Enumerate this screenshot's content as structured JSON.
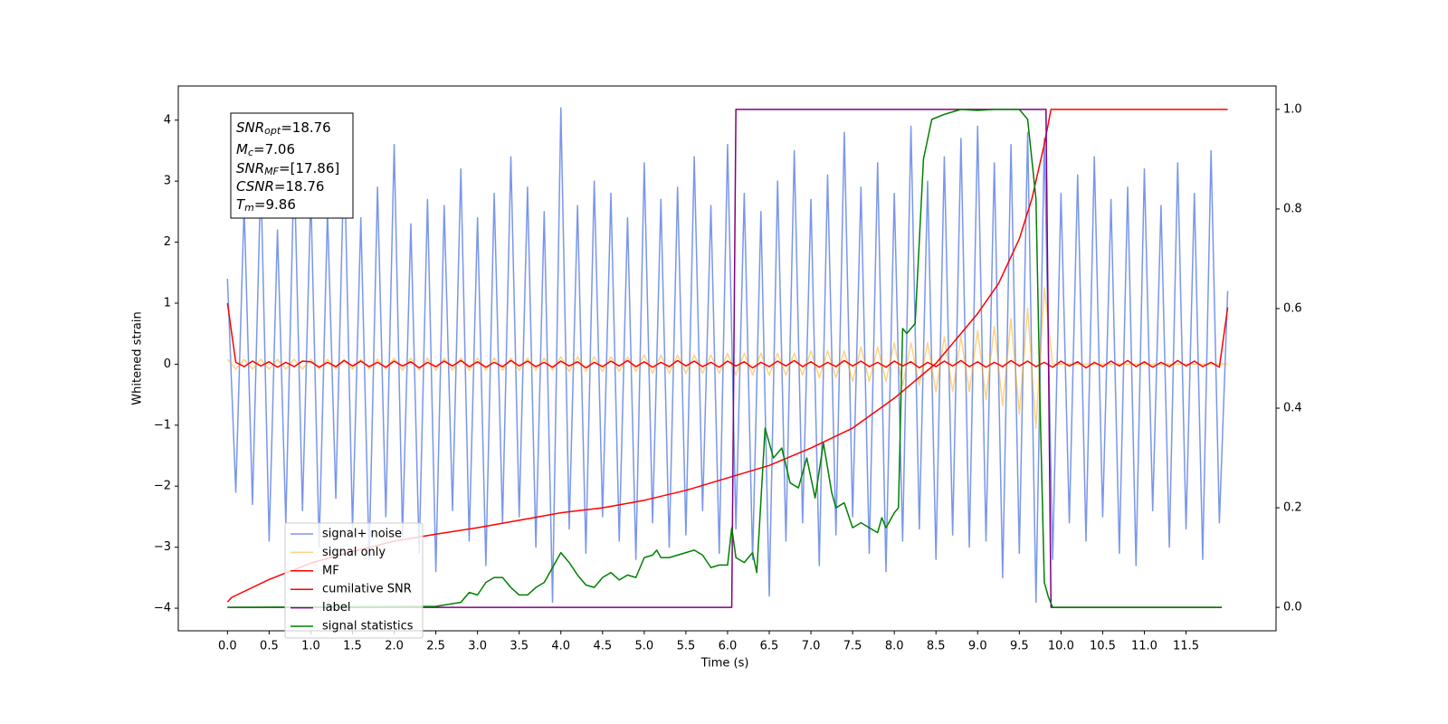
{
  "chart_data": {
    "type": "line",
    "xlabel": "Time (s)",
    "ylabel": "Whitened strain",
    "xlim": [
      -0.59,
      12.58
    ],
    "ylim": [
      -4.37,
      4.56
    ],
    "y2lim": [
      -0.047,
      1.047
    ],
    "xticks": [
      {
        "value": 0,
        "label": "0.0"
      },
      0.5,
      {
        "value": 1,
        "label": "1.0"
      },
      1.5,
      {
        "value": 2,
        "label": "2.0"
      },
      2.5,
      {
        "value": 3,
        "label": "3.0"
      },
      3.5,
      {
        "value": 4,
        "label": "4.0"
      },
      4.5,
      {
        "value": 5,
        "label": "5.0"
      },
      5.5,
      {
        "value": 6,
        "label": "6.0"
      },
      6.5,
      {
        "value": 7,
        "label": "7.0"
      },
      7.5,
      {
        "value": 8,
        "label": "8.0"
      },
      8.5,
      {
        "value": 9,
        "label": "9.0"
      },
      9.5,
      {
        "value": 10,
        "label": "10.0"
      },
      10.5,
      {
        "value": 11,
        "label": "11.0"
      },
      11.5
    ],
    "yticks": [
      {
        "value": -4,
        "label": "−4"
      },
      {
        "value": -3,
        "label": "−3"
      },
      {
        "value": -2,
        "label": "−2"
      },
      {
        "value": -1,
        "label": "−1"
      },
      0,
      1,
      2,
      3,
      4
    ],
    "y2ticks": [
      {
        "value": 0,
        "label": "0.0"
      },
      0.2,
      0.4,
      0.6,
      0.8,
      {
        "value": 1,
        "label": "1.0"
      }
    ],
    "legend": "lower left",
    "annotation": [
      {
        "symbol": "SNR",
        "subscript": "opt",
        "text": "=18.76"
      },
      {
        "symbol": "M",
        "subscript": "c",
        "text": "=7.06"
      },
      {
        "symbol": "SNR",
        "subscript": "MF",
        "text": "=[17.86]"
      },
      {
        "symbol": "CSNR",
        "text": "=18.76"
      },
      {
        "symbol": "T",
        "subscript": "m",
        "text": "=9.86"
      }
    ],
    "x": [
      0,
      0.1,
      0.2,
      0.3,
      0.4,
      0.5,
      0.6,
      0.7,
      0.8,
      0.9,
      1,
      1.1,
      1.2,
      1.3,
      1.4,
      1.5,
      1.6,
      1.7,
      1.8,
      1.9,
      2,
      2.1,
      2.2,
      2.3,
      2.4,
      2.5,
      2.6,
      2.7,
      2.8,
      2.9,
      3,
      3.1,
      3.2,
      3.3,
      3.4,
      3.5,
      3.6,
      3.7,
      3.8,
      3.9,
      4,
      4.1,
      4.2,
      4.3,
      4.4,
      4.5,
      4.6,
      4.7,
      4.8,
      4.9,
      5,
      5.1,
      5.2,
      5.3,
      5.4,
      5.5,
      5.6,
      5.7,
      5.8,
      5.9,
      6,
      6.1,
      6.2,
      6.3,
      6.4,
      6.5,
      6.6,
      6.7,
      6.8,
      6.9,
      7,
      7.1,
      7.2,
      7.3,
      7.4,
      7.5,
      7.6,
      7.7,
      7.8,
      7.9,
      8,
      8.1,
      8.2,
      8.3,
      8.4,
      8.5,
      8.6,
      8.7,
      8.8,
      8.9,
      9,
      9.1,
      9.2,
      9.3,
      9.4,
      9.5,
      9.6,
      9.7,
      9.8,
      9.9,
      10,
      10.1,
      10.2,
      10.3,
      10.4,
      10.5,
      10.6,
      10.7,
      10.8,
      10.9,
      11,
      11.1,
      11.2,
      11.3,
      11.4,
      11.5,
      11.6,
      11.7,
      11.8,
      11.9,
      12
    ],
    "series": [
      {
        "name": "signal+ noise",
        "color": "royalblue",
        "alpha": 0.7,
        "values": [
          1.4,
          -2.1,
          2.6,
          -2.3,
          3.1,
          -2.9,
          2.2,
          -2.6,
          3.3,
          -2.4,
          2.8,
          -3.0,
          2.5,
          -2.2,
          3.5,
          -2.7,
          2.4,
          -3.2,
          2.9,
          -2.5,
          3.6,
          -2.8,
          2.3,
          -3.1,
          2.7,
          -3.4,
          2.6,
          -2.4,
          3.2,
          -2.9,
          2.4,
          -3.3,
          2.8,
          -2.6,
          3.4,
          -2.5,
          2.9,
          -3.0,
          2.5,
          -3.9,
          4.2,
          -2.7,
          2.6,
          -3.1,
          3.0,
          -2.5,
          2.8,
          -2.9,
          2.4,
          -3.2,
          3.3,
          -2.6,
          2.7,
          -3.0,
          2.9,
          -2.8,
          3.4,
          -2.4,
          2.6,
          -3.1,
          3.6,
          -2.7,
          2.8,
          -3.2,
          2.5,
          -3.8,
          3.0,
          -2.9,
          3.5,
          -2.6,
          2.7,
          -3.3,
          3.1,
          -2.8,
          3.8,
          -2.5,
          2.9,
          -3.1,
          3.3,
          -3.4,
          2.8,
          -2.9,
          3.9,
          -2.7,
          3.0,
          -3.2,
          3.4,
          -2.8,
          3.7,
          -3.0,
          3.9,
          -2.9,
          3.3,
          -3.5,
          3.6,
          -3.1,
          3.8,
          -3.9,
          3.7,
          -3.2,
          2.8,
          -2.6,
          3.1,
          -2.9,
          3.4,
          -2.5,
          2.7,
          -3.1,
          2.9,
          -3.3,
          3.2,
          -2.4,
          2.6,
          -3.0,
          3.3,
          -2.7,
          2.8,
          -3.2,
          3.5,
          -2.6,
          1.2
        ]
      },
      {
        "name": "signal only",
        "color": "orange",
        "alpha": 0.5,
        "values": [
          0.08,
          -0.08,
          0.08,
          -0.08,
          0.08,
          -0.08,
          0.08,
          -0.08,
          0.08,
          -0.08,
          0.08,
          -0.08,
          0.08,
          -0.08,
          0.08,
          -0.08,
          0.08,
          -0.08,
          0.08,
          -0.08,
          0.1,
          -0.1,
          0.1,
          -0.1,
          0.1,
          -0.1,
          0.1,
          -0.1,
          0.1,
          -0.1,
          0.1,
          -0.1,
          0.1,
          -0.1,
          0.1,
          -0.1,
          0.1,
          -0.1,
          0.1,
          -0.1,
          0.12,
          -0.12,
          0.12,
          -0.12,
          0.12,
          -0.12,
          0.12,
          -0.12,
          0.12,
          -0.12,
          0.15,
          -0.15,
          0.15,
          -0.15,
          0.15,
          -0.15,
          0.15,
          -0.15,
          0.15,
          -0.15,
          0.18,
          -0.18,
          0.18,
          -0.18,
          0.18,
          -0.18,
          0.18,
          -0.18,
          0.18,
          -0.18,
          0.22,
          -0.22,
          0.22,
          -0.22,
          0.22,
          -0.28,
          0.28,
          -0.28,
          0.28,
          -0.28,
          0.35,
          -0.35,
          0.35,
          -0.35,
          0.35,
          -0.45,
          0.45,
          -0.45,
          0.45,
          -0.45,
          0.55,
          -0.58,
          0.62,
          -0.68,
          0.75,
          -0.82,
          0.92,
          -1.05,
          1.25,
          0,
          0,
          0,
          0,
          0,
          0,
          0,
          0,
          0,
          0,
          0,
          0,
          0,
          0,
          0,
          0,
          0,
          0,
          0,
          0,
          0,
          0
        ]
      },
      {
        "name": "MF",
        "color": "red",
        "alpha": 1,
        "values": [
          1.0,
          0.03,
          -0.04,
          0.05,
          -0.03,
          0.04,
          -0.05,
          0.03,
          -0.04,
          0.05,
          0.04,
          -0.05,
          0.03,
          -0.04,
          0.06,
          -0.03,
          0.05,
          -0.04,
          0.03,
          -0.05,
          0.05,
          -0.03,
          0.04,
          -0.06,
          0.03,
          -0.04,
          0.05,
          -0.03,
          0.06,
          -0.04,
          0.04,
          -0.05,
          0.03,
          -0.04,
          0.06,
          -0.03,
          0.05,
          -0.04,
          0.03,
          -0.05,
          0.05,
          -0.03,
          0.04,
          -0.06,
          0.03,
          -0.04,
          0.05,
          -0.03,
          0.06,
          -0.04,
          0.04,
          -0.05,
          0.03,
          -0.04,
          0.06,
          -0.03,
          0.05,
          -0.04,
          0.03,
          -0.05,
          0.05,
          -0.03,
          0.04,
          -0.06,
          0.03,
          -0.04,
          0.05,
          -0.03,
          0.06,
          -0.04,
          0.04,
          -0.05,
          0.03,
          -0.04,
          0.06,
          -0.03,
          0.05,
          -0.04,
          0.03,
          -0.05,
          0.05,
          -0.03,
          0.04,
          -0.06,
          0.03,
          -0.04,
          0.05,
          -0.03,
          0.06,
          -0.04,
          0.04,
          -0.05,
          0.03,
          -0.04,
          0.06,
          -0.03,
          0.05,
          -0.04,
          0.03,
          -0.05,
          0.05,
          -0.03,
          0.04,
          -0.06,
          0.03,
          -0.04,
          0.05,
          -0.03,
          0.06,
          -0.04,
          0.04,
          -0.05,
          0.03,
          -0.04,
          0.06,
          -0.03,
          0.05,
          -0.04,
          0.03,
          -0.05,
          0.93
        ]
      },
      {
        "name": "cumilative SNR",
        "color": "red",
        "alpha": 1,
        "axis": "y2",
        "x": [
          0,
          0.05,
          0.5,
          1,
          1.5,
          2,
          2.5,
          3,
          3.5,
          4,
          4.5,
          5,
          5.5,
          6,
          6.5,
          7,
          7.5,
          8,
          8.5,
          9,
          9.25,
          9.5,
          9.65,
          9.8,
          9.88,
          12
        ],
        "values": [
          0.011,
          0.02,
          0.056,
          0.089,
          0.112,
          0.133,
          0.147,
          0.16,
          0.175,
          0.19,
          0.2,
          0.215,
          0.235,
          0.26,
          0.285,
          0.32,
          0.36,
          0.42,
          0.49,
          0.59,
          0.65,
          0.74,
          0.82,
          0.93,
          1.0,
          1.0
        ]
      },
      {
        "name": "label",
        "color": "purple",
        "alpha": 1,
        "axis": "y2",
        "x": [
          0,
          6.05,
          6.1,
          9.82,
          9.88,
          11.93
        ],
        "values": [
          0,
          0,
          1,
          1,
          0,
          0
        ]
      },
      {
        "name": "signal statistics",
        "color": "green",
        "alpha": 1,
        "axis": "y2",
        "x": [
          0,
          2.5,
          2.8,
          2.9,
          3.0,
          3.1,
          3.2,
          3.3,
          3.4,
          3.5,
          3.6,
          3.7,
          3.8,
          3.9,
          4.0,
          4.1,
          4.2,
          4.3,
          4.4,
          4.5,
          4.6,
          4.7,
          4.8,
          4.9,
          5.0,
          5.1,
          5.15,
          5.2,
          5.3,
          5.4,
          5.5,
          5.6,
          5.7,
          5.8,
          5.9,
          6.0,
          6.05,
          6.1,
          6.2,
          6.3,
          6.35,
          6.45,
          6.55,
          6.65,
          6.75,
          6.85,
          6.95,
          7.05,
          7.15,
          7.25,
          7.3,
          7.4,
          7.5,
          7.6,
          7.7,
          7.8,
          7.85,
          7.9,
          8.0,
          8.05,
          8.1,
          8.15,
          8.25,
          8.35,
          8.45,
          8.6,
          8.8,
          9.0,
          9.2,
          9.5,
          9.6,
          9.7,
          9.75,
          9.8,
          9.85,
          9.9,
          11.93
        ],
        "values": [
          0,
          0.002,
          0.01,
          0.03,
          0.025,
          0.05,
          0.06,
          0.06,
          0.04,
          0.025,
          0.025,
          0.04,
          0.05,
          0.08,
          0.11,
          0.09,
          0.065,
          0.045,
          0.04,
          0.06,
          0.07,
          0.055,
          0.065,
          0.06,
          0.1,
          0.105,
          0.115,
          0.1,
          0.1,
          0.105,
          0.11,
          0.115,
          0.105,
          0.08,
          0.085,
          0.085,
          0.16,
          0.1,
          0.09,
          0.11,
          0.07,
          0.36,
          0.3,
          0.32,
          0.25,
          0.24,
          0.3,
          0.22,
          0.33,
          0.23,
          0.2,
          0.21,
          0.16,
          0.17,
          0.16,
          0.15,
          0.18,
          0.16,
          0.19,
          0.2,
          0.56,
          0.55,
          0.57,
          0.9,
          0.98,
          0.99,
          1.0,
          0.998,
          1.0,
          1.0,
          0.98,
          0.82,
          0.4,
          0.05,
          0.02,
          0,
          0
        ]
      }
    ]
  }
}
